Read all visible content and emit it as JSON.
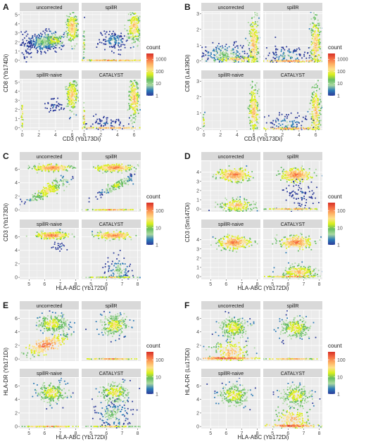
{
  "colors": {
    "panel_bg": "#ebebeb",
    "strip_bg": "#d9d9d9",
    "grid_major": "#ffffff",
    "grid_minor": "#f5f5f5",
    "text_dark": "#1a1a1a",
    "tick_text": "#4d4d4d",
    "scale": [
      "#2b3a9a",
      "#2c7bb6",
      "#abd9a0",
      "#66bd63",
      "#d9ef1b",
      "#fee08b",
      "#fdae61",
      "#f46d43",
      "#d73027"
    ]
  },
  "chart_data": [
    {
      "panel_label": "A",
      "type": "scatter",
      "facets": [
        "uncorrected",
        "spillR",
        "spillR-naive",
        "CATALYST"
      ],
      "xlabel": "CD3 (Yb173Di)",
      "ylabel": "CD8 (Yb174Di)",
      "xlim": [
        -0.3,
        6.8
      ],
      "ylim": [
        -0.25,
        5.3
      ],
      "xticks": [
        0,
        2,
        4,
        6
      ],
      "yticks": [
        0,
        1,
        2,
        3,
        4,
        5
      ],
      "legend": {
        "title": "count",
        "labels": [
          "1000",
          "100",
          "10",
          "1"
        ],
        "values": [
          1000,
          100,
          10,
          1
        ],
        "max": 3000,
        "position": "right"
      },
      "series": [
        {
          "facet": "uncorrected",
          "clusters": [
            {
              "x": 2.5,
              "y": 2.0,
              "sx": 0.9,
              "sy": 0.5,
              "n": 260,
              "c": 3
            },
            {
              "x": 3.8,
              "y": 2.2,
              "sx": 0.6,
              "sy": 0.35,
              "n": 120,
              "c": 5
            },
            {
              "x": 6.0,
              "y": 3.6,
              "sx": 0.35,
              "sy": 0.85,
              "n": 220,
              "c": 6
            },
            {
              "x": 0.4,
              "y": 1.5,
              "sx": 0.5,
              "sy": 0.8,
              "n": 50,
              "c": 1
            }
          ]
        },
        {
          "facet": "spillR",
          "clusters": [
            {
              "x": 3.5,
              "y": 2.2,
              "sx": 0.9,
              "sy": 0.6,
              "n": 120,
              "c": 2
            },
            {
              "x": 6.0,
              "y": 3.7,
              "sx": 0.4,
              "sy": 0.85,
              "n": 200,
              "c": 6
            },
            {
              "x": 0.0,
              "y": 1.5,
              "sx": 0.05,
              "sy": 1.0,
              "n": 30,
              "c": 5
            },
            {
              "x": 3.2,
              "y": 0.0,
              "sx": 2.2,
              "sy": 0.02,
              "n": 120,
              "c": 7
            }
          ]
        },
        {
          "facet": "spillR-naive",
          "clusters": [
            {
              "x": 6.0,
              "y": 3.6,
              "sx": 0.35,
              "sy": 0.85,
              "n": 220,
              "c": 6
            },
            {
              "x": 3.8,
              "y": 2.4,
              "sx": 0.5,
              "sy": 0.4,
              "n": 40,
              "c": 1
            },
            {
              "x": 0.0,
              "y": 1.4,
              "sx": 0.05,
              "sy": 0.9,
              "n": 25,
              "c": 6
            }
          ]
        },
        {
          "facet": "CATALYST",
          "clusters": [
            {
              "x": 6.0,
              "y": 3.2,
              "sx": 0.3,
              "sy": 1.1,
              "n": 220,
              "c": 6
            },
            {
              "x": 2.5,
              "y": 0.5,
              "sx": 1.6,
              "sy": 0.5,
              "n": 80,
              "c": 1
            },
            {
              "x": 0.0,
              "y": 1.0,
              "sx": 0.05,
              "sy": 0.8,
              "n": 25,
              "c": 6
            },
            {
              "x": 3.2,
              "y": 0.0,
              "sx": 2.2,
              "sy": 0.02,
              "n": 100,
              "c": 7
            }
          ]
        }
      ]
    },
    {
      "panel_label": "B",
      "type": "scatter",
      "facets": [
        "uncorrected",
        "spillR",
        "spillR-naive",
        "CATALYST"
      ],
      "xlabel": "CD3 (Yb173Di)",
      "ylabel": "CD8 (La139Di)",
      "xlim": [
        -0.3,
        6.8
      ],
      "ylim": [
        -0.1,
        3.1
      ],
      "xticks": [
        0,
        2,
        4,
        6
      ],
      "yticks": [
        0,
        1,
        2,
        3
      ],
      "legend": {
        "title": "count",
        "labels": [
          "1000",
          "100",
          "10",
          "1"
        ],
        "values": [
          1000,
          100,
          10,
          1
        ],
        "max": 3000,
        "position": "right"
      },
      "series": [
        {
          "facet": "uncorrected",
          "clusters": [
            {
              "x": 6.0,
              "y": 1.0,
              "sx": 0.3,
              "sy": 0.9,
              "n": 230,
              "c": 6
            },
            {
              "x": 2.6,
              "y": 0.4,
              "sx": 1.3,
              "sy": 0.35,
              "n": 200,
              "c": 3
            },
            {
              "x": 4.0,
              "y": 0.1,
              "sx": 1.5,
              "sy": 0.1,
              "n": 100,
              "c": 6
            }
          ]
        },
        {
          "facet": "spillR",
          "clusters": [
            {
              "x": 6.0,
              "y": 1.0,
              "sx": 0.3,
              "sy": 0.9,
              "n": 220,
              "c": 6
            },
            {
              "x": 2.5,
              "y": 0.3,
              "sx": 1.5,
              "sy": 0.4,
              "n": 130,
              "c": 2
            },
            {
              "x": 3.2,
              "y": 0.0,
              "sx": 2.0,
              "sy": 0.03,
              "n": 100,
              "c": 7
            }
          ]
        },
        {
          "facet": "spillR-naive",
          "clusters": [
            {
              "x": 6.0,
              "y": 1.1,
              "sx": 0.3,
              "sy": 0.85,
              "n": 220,
              "c": 6
            },
            {
              "x": 0.0,
              "y": 0.4,
              "sx": 0.05,
              "sy": 0.5,
              "n": 20,
              "c": 5
            }
          ]
        },
        {
          "facet": "CATALYST",
          "clusters": [
            {
              "x": 6.0,
              "y": 1.0,
              "sx": 0.3,
              "sy": 0.9,
              "n": 220,
              "c": 6
            },
            {
              "x": 2.6,
              "y": 0.3,
              "sx": 1.5,
              "sy": 0.35,
              "n": 110,
              "c": 2
            },
            {
              "x": 3.0,
              "y": 0.0,
              "sx": 2.2,
              "sy": 0.03,
              "n": 100,
              "c": 7
            }
          ]
        }
      ]
    },
    {
      "panel_label": "C",
      "type": "scatter",
      "facets": [
        "uncorrected",
        "spillR",
        "spillR-naive",
        "CATALYST"
      ],
      "xlabel": "HLA-ABC (Yb172Di)",
      "ylabel": "CD3 (Yb173Di)",
      "xlim": [
        4.4,
        8.2
      ],
      "ylim": [
        -0.3,
        7.2
      ],
      "xticks": [
        5,
        6,
        7,
        8
      ],
      "yticks": [
        0,
        2,
        4,
        6
      ],
      "legend": {
        "title": "count",
        "labels": [
          "100",
          "10",
          "1"
        ],
        "values": [
          100,
          10,
          1
        ],
        "max": 300,
        "position": "right"
      },
      "series": [
        {
          "facet": "uncorrected",
          "clusters": [
            {
              "x": 6.5,
              "y": 6.2,
              "sx": 0.55,
              "sy": 0.25,
              "n": 260,
              "c": 7
            },
            {
              "x": 6.2,
              "y": 2.9,
              "sx": 0.7,
              "sy": 1.0,
              "n": 240,
              "c": 5,
              "rho": 0.9
            }
          ]
        },
        {
          "facet": "spillR",
          "clusters": [
            {
              "x": 6.5,
              "y": 6.2,
              "sx": 0.55,
              "sy": 0.25,
              "n": 260,
              "c": 7
            },
            {
              "x": 6.7,
              "y": 3.6,
              "sx": 0.6,
              "sy": 0.8,
              "n": 150,
              "c": 4,
              "rho": 0.9
            },
            {
              "x": 6.3,
              "y": 0.0,
              "sx": 0.8,
              "sy": 0.02,
              "n": 100,
              "c": 7
            }
          ]
        },
        {
          "facet": "spillR-naive",
          "clusters": [
            {
              "x": 6.5,
              "y": 6.2,
              "sx": 0.5,
              "sy": 0.25,
              "n": 250,
              "c": 7
            },
            {
              "x": 7.0,
              "y": 4.6,
              "sx": 0.3,
              "sy": 0.3,
              "n": 20,
              "c": 1
            }
          ]
        },
        {
          "facet": "CATALYST",
          "clusters": [
            {
              "x": 6.5,
              "y": 6.2,
              "sx": 0.55,
              "sy": 0.25,
              "n": 250,
              "c": 7
            },
            {
              "x": 6.8,
              "y": 1.0,
              "sx": 0.4,
              "sy": 0.9,
              "n": 100,
              "c": 3
            },
            {
              "x": 6.3,
              "y": 0.0,
              "sx": 0.8,
              "sy": 0.02,
              "n": 100,
              "c": 6
            }
          ]
        }
      ]
    },
    {
      "panel_label": "D",
      "type": "scatter",
      "facets": [
        "uncorrected",
        "spillR",
        "spillR-naive",
        "CATALYST"
      ],
      "xlabel": "HLA-ABC (Yb172Di)",
      "ylabel": "CD3 (Sm147Di)",
      "xlim": [
        4.4,
        8.2
      ],
      "ylim": [
        -0.3,
        5.2
      ],
      "xticks": [
        5,
        6,
        7,
        8
      ],
      "yticks": [
        0,
        1,
        2,
        3,
        4
      ],
      "legend": {
        "title": "count",
        "labels": [
          "100",
          "10",
          "1"
        ],
        "values": [
          100,
          10,
          1
        ],
        "max": 300,
        "position": "right"
      },
      "series": [
        {
          "facet": "uncorrected",
          "clusters": [
            {
              "x": 6.5,
              "y": 3.7,
              "sx": 0.5,
              "sy": 0.35,
              "n": 280,
              "c": 7
            },
            {
              "x": 6.7,
              "y": 0.4,
              "sx": 0.55,
              "sy": 0.35,
              "n": 200,
              "c": 6
            }
          ]
        },
        {
          "facet": "spillR",
          "clusters": [
            {
              "x": 6.5,
              "y": 3.7,
              "sx": 0.5,
              "sy": 0.35,
              "n": 280,
              "c": 7
            },
            {
              "x": 6.8,
              "y": 1.5,
              "sx": 0.5,
              "sy": 0.9,
              "n": 80,
              "c": 1
            },
            {
              "x": 6.3,
              "y": 0.0,
              "sx": 0.8,
              "sy": 0.02,
              "n": 100,
              "c": 7
            }
          ]
        },
        {
          "facet": "spillR-naive",
          "clusters": [
            {
              "x": 6.5,
              "y": 3.7,
              "sx": 0.5,
              "sy": 0.35,
              "n": 280,
              "c": 7
            }
          ]
        },
        {
          "facet": "CATALYST",
          "clusters": [
            {
              "x": 6.5,
              "y": 3.7,
              "sx": 0.5,
              "sy": 0.35,
              "n": 260,
              "c": 7
            },
            {
              "x": 6.7,
              "y": 0.5,
              "sx": 0.55,
              "sy": 0.35,
              "n": 220,
              "c": 6
            },
            {
              "x": 6.3,
              "y": 0.0,
              "sx": 0.8,
              "sy": 0.02,
              "n": 100,
              "c": 7
            }
          ]
        }
      ]
    },
    {
      "panel_label": "E",
      "type": "scatter",
      "facets": [
        "uncorrected",
        "spillR",
        "spillR-naive",
        "CATALYST"
      ],
      "xlabel": "HLA-ABC (Yb172Di)",
      "ylabel": "HLA-DR (Yb171Di)",
      "xlim": [
        4.4,
        8.2
      ],
      "ylim": [
        -0.3,
        7.2
      ],
      "xticks": [
        5,
        6,
        7,
        8
      ],
      "yticks": [
        0,
        2,
        4,
        6
      ],
      "legend": {
        "title": "count",
        "labels": [
          "100",
          "10",
          "1"
        ],
        "values": [
          100,
          10,
          1
        ],
        "max": 300,
        "position": "right"
      },
      "series": [
        {
          "facet": "uncorrected",
          "clusters": [
            {
              "x": 6.5,
              "y": 5.2,
              "sx": 0.5,
              "sy": 0.7,
              "n": 240,
              "c": 5
            },
            {
              "x": 6.1,
              "y": 2.1,
              "sx": 0.7,
              "sy": 0.8,
              "n": 240,
              "c": 7,
              "rho": 0.8
            }
          ]
        },
        {
          "facet": "spillR",
          "clusters": [
            {
              "x": 6.5,
              "y": 5.0,
              "sx": 0.5,
              "sy": 0.8,
              "n": 220,
              "c": 5
            },
            {
              "x": 6.3,
              "y": 0.0,
              "sx": 0.8,
              "sy": 0.02,
              "n": 100,
              "c": 7
            }
          ]
        },
        {
          "facet": "spillR-naive",
          "clusters": [
            {
              "x": 6.5,
              "y": 5.0,
              "sx": 0.5,
              "sy": 0.8,
              "n": 220,
              "c": 5
            },
            {
              "x": 6.3,
              "y": 0.0,
              "sx": 0.8,
              "sy": 0.02,
              "n": 100,
              "c": 7
            }
          ]
        },
        {
          "facet": "CATALYST",
          "clusters": [
            {
              "x": 6.5,
              "y": 5.0,
              "sx": 0.5,
              "sy": 0.8,
              "n": 200,
              "c": 5
            },
            {
              "x": 6.4,
              "y": 1.8,
              "sx": 0.55,
              "sy": 1.0,
              "n": 150,
              "c": 3
            },
            {
              "x": 6.3,
              "y": 0.0,
              "sx": 0.8,
              "sy": 0.02,
              "n": 100,
              "c": 6
            }
          ]
        }
      ]
    },
    {
      "panel_label": "F",
      "type": "scatter",
      "facets": [
        "uncorrected",
        "spillR",
        "spillR-naive",
        "CATALYST"
      ],
      "xlabel": "HLA-ABC (Yb172Di)",
      "ylabel": "HLA-DR (Lu175Di)",
      "xlim": [
        4.4,
        8.2
      ],
      "ylim": [
        -0.3,
        7.2
      ],
      "xticks": [
        5,
        6,
        7,
        8
      ],
      "yticks": [
        0,
        2,
        4,
        6
      ],
      "legend": {
        "title": "count",
        "labels": [
          "100",
          "10",
          "1"
        ],
        "values": [
          100,
          10,
          1
        ],
        "max": 300,
        "position": "right"
      },
      "series": [
        {
          "facet": "uncorrected",
          "clusters": [
            {
              "x": 6.5,
              "y": 4.6,
              "sx": 0.5,
              "sy": 0.8,
              "n": 230,
              "c": 5
            },
            {
              "x": 6.3,
              "y": 1.0,
              "sx": 0.6,
              "sy": 1.0,
              "n": 180,
              "c": 6
            },
            {
              "x": 6.0,
              "y": 0.1,
              "sx": 0.9,
              "sy": 0.1,
              "n": 120,
              "c": 8
            }
          ]
        },
        {
          "facet": "spillR",
          "clusters": [
            {
              "x": 6.5,
              "y": 4.6,
              "sx": 0.5,
              "sy": 0.8,
              "n": 220,
              "c": 5
            },
            {
              "x": 6.3,
              "y": 0.0,
              "sx": 0.8,
              "sy": 0.02,
              "n": 100,
              "c": 7
            }
          ]
        },
        {
          "facet": "spillR-naive",
          "clusters": [
            {
              "x": 6.5,
              "y": 4.6,
              "sx": 0.5,
              "sy": 0.8,
              "n": 220,
              "c": 5
            }
          ]
        },
        {
          "facet": "CATALYST",
          "clusters": [
            {
              "x": 6.5,
              "y": 4.6,
              "sx": 0.5,
              "sy": 0.8,
              "n": 200,
              "c": 5
            },
            {
              "x": 6.3,
              "y": 1.0,
              "sx": 0.6,
              "sy": 1.0,
              "n": 160,
              "c": 6
            },
            {
              "x": 6.2,
              "y": 0.1,
              "sx": 0.8,
              "sy": 0.1,
              "n": 120,
              "c": 8
            }
          ]
        }
      ]
    }
  ]
}
